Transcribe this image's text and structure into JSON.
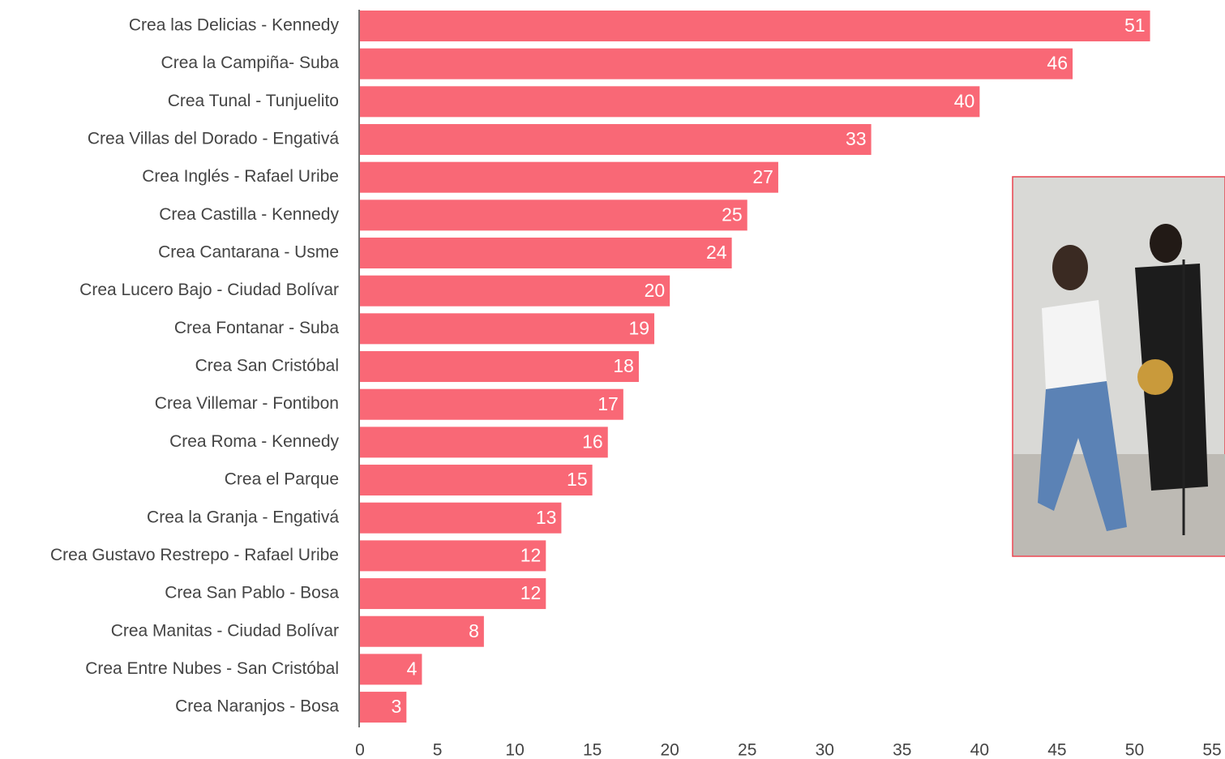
{
  "chart_data": {
    "type": "bar",
    "orientation": "horizontal",
    "categories": [
      "Crea las Delicias - Kennedy",
      "Crea la Campiña- Suba",
      "Crea Tunal - Tunjuelito",
      "Crea Villas del Dorado - Engativá",
      "Crea Inglés - Rafael Uribe",
      "Crea Castilla - Kennedy",
      "Crea Cantarana - Usme",
      "Crea Lucero Bajo - Ciudad Bolívar",
      "Crea Fontanar - Suba",
      "Crea San Cristóbal",
      "Crea Villemar - Fontibon",
      "Crea Roma - Kennedy",
      "Crea el Parque",
      "Crea la Granja - Engativá",
      "Crea Gustavo Restrepo - Rafael Uribe",
      "Crea San Pablo - Bosa",
      "Crea Manitas - Ciudad Bolívar",
      "Crea Entre Nubes - San Cristóbal",
      "Crea Naranjos - Bosa"
    ],
    "values": [
      51,
      46,
      40,
      33,
      27,
      25,
      24,
      20,
      19,
      18,
      17,
      16,
      15,
      13,
      12,
      12,
      8,
      4,
      3
    ],
    "color": "#f96876",
    "xlim": [
      0,
      55
    ],
    "xticks": [
      0,
      5,
      10,
      15,
      20,
      25,
      30,
      35,
      40,
      45,
      50,
      55
    ],
    "grid": false
  }
}
